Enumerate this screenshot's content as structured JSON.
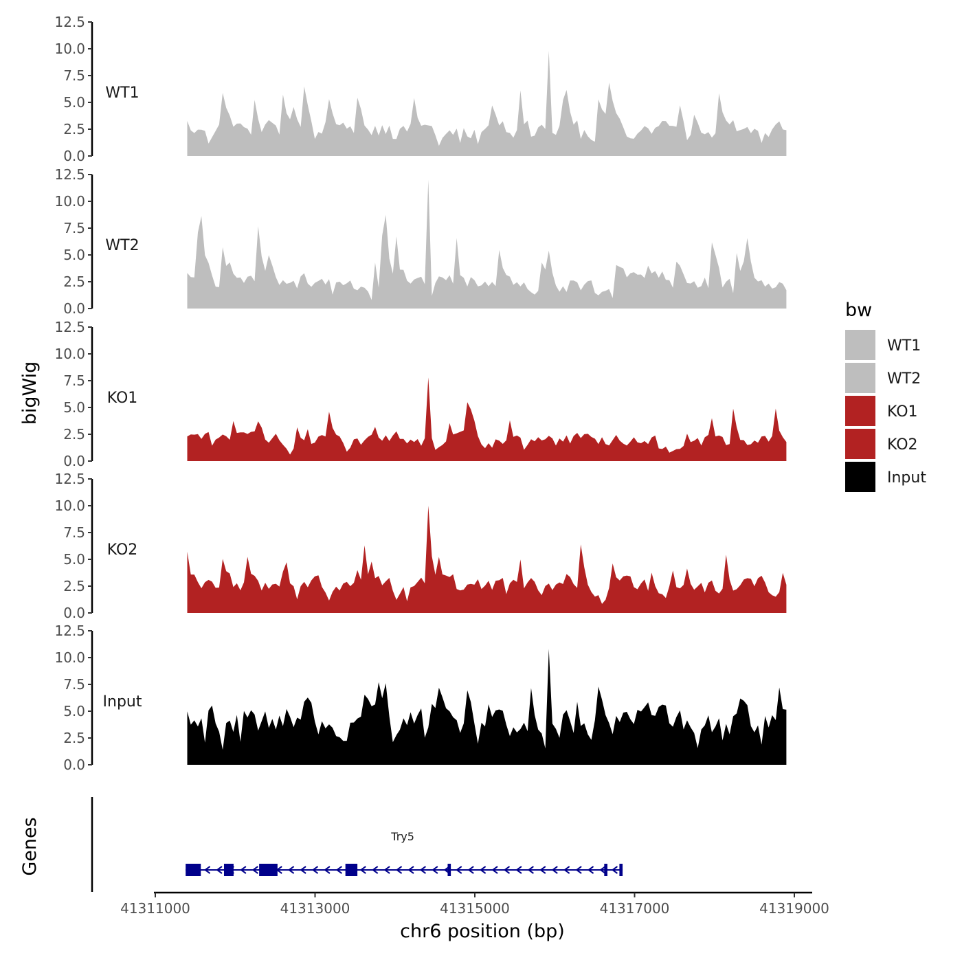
{
  "chart_data": {
    "type": "area",
    "ylabel": "bigWig",
    "xlabel": "chr6 position (bp)",
    "chromosome": "chr6",
    "ylim": [
      0,
      12.5
    ],
    "yticks": [
      0.0,
      2.5,
      5.0,
      7.5,
      10.0,
      12.5
    ],
    "ytick_labels": [
      "0.0",
      "2.5",
      "5.0",
      "7.5",
      "10.0",
      "12.5"
    ],
    "xlim": [
      41311000,
      41319000
    ],
    "xticks": [
      41311000,
      41313000,
      41315000,
      41317000,
      41319000
    ],
    "xtick_labels": [
      "41311000",
      "41313000",
      "41315000",
      "41317000",
      "41319000"
    ],
    "legend_title": "bw",
    "legend": [
      {
        "name": "WT1",
        "color": "#bebebe"
      },
      {
        "name": "WT2",
        "color": "#bebebe"
      },
      {
        "name": "KO1",
        "color": "#b22222"
      },
      {
        "name": "KO2",
        "color": "#b22222"
      },
      {
        "name": "Input",
        "color": "#000000"
      }
    ],
    "track_start": 41311400,
    "track_end": 41318900,
    "tracks": [
      {
        "name": "WT1",
        "color": "#bebebe",
        "seed": 11,
        "peak": 9.8,
        "base": 3.0
      },
      {
        "name": "WT2",
        "color": "#bebebe",
        "seed": 23,
        "peak": 12.0,
        "base": 3.0
      },
      {
        "name": "KO1",
        "color": "#b22222",
        "seed": 37,
        "peak": 7.8,
        "base": 2.4
      },
      {
        "name": "KO2",
        "color": "#b22222",
        "seed": 51,
        "peak": 10.0,
        "base": 3.0
      },
      {
        "name": "Input",
        "color": "#000000",
        "seed": 67,
        "peak": 10.8,
        "base": 5.0
      }
    ],
    "genes_panel_label": "Genes",
    "gene": {
      "name": "Try5",
      "color": "#00008b",
      "start": 41311380,
      "end": 41316850,
      "strand": "-",
      "exons": [
        [
          41311380,
          41311570
        ],
        [
          41311860,
          41311980
        ],
        [
          41312300,
          41312530
        ],
        [
          41313380,
          41313530
        ],
        [
          41314660,
          41314700
        ],
        [
          41316620,
          41316660
        ],
        [
          41316810,
          41316850
        ]
      ]
    }
  }
}
